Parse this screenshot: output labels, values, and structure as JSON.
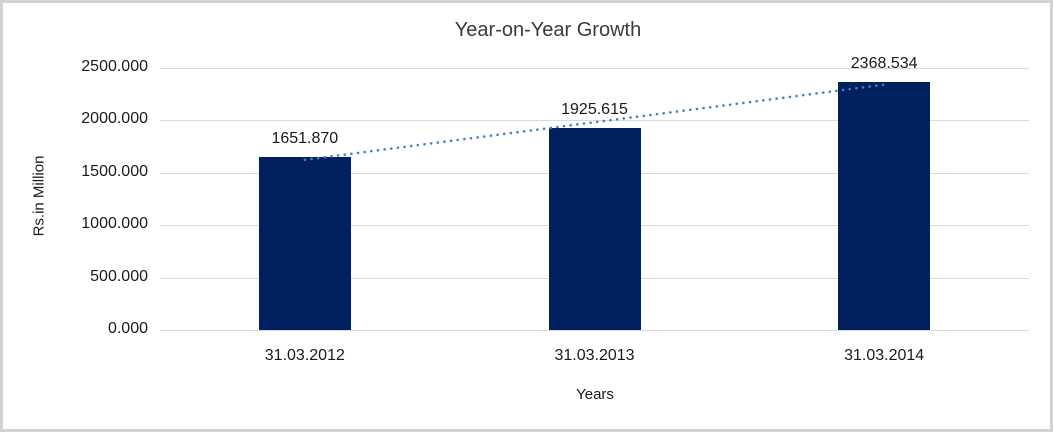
{
  "frame": {
    "border_color": "#d2d2d2",
    "background_color": "#ffffff"
  },
  "chart_data": {
    "type": "bar",
    "title": "Year-on-Year Growth",
    "xlabel": "Years",
    "ylabel": "Rs.in Million",
    "categories": [
      "31.03.2012",
      "31.03.2013",
      "31.03.2014"
    ],
    "values": [
      1651.87,
      1925.615,
      2368.534
    ],
    "data_labels": [
      "1651.870",
      "1925.615",
      "2368.534"
    ],
    "y_ticks": [
      {
        "value": 0,
        "label": "0.000"
      },
      {
        "value": 500,
        "label": "500.000"
      },
      {
        "value": 1000,
        "label": "1000.000"
      },
      {
        "value": 1500,
        "label": "1500.000"
      },
      {
        "value": 2000,
        "label": "2000.000"
      },
      {
        "value": 2500,
        "label": "2500.000"
      }
    ],
    "ylim": [
      0,
      2500
    ],
    "grid": true,
    "legend": "none",
    "bar_color": "#002060",
    "gridline_color": "#d9d9d9",
    "text_color": "#1a1a1a",
    "trendline": {
      "type": "linear",
      "style": "dotted",
      "color": "#4a7ebb"
    }
  }
}
